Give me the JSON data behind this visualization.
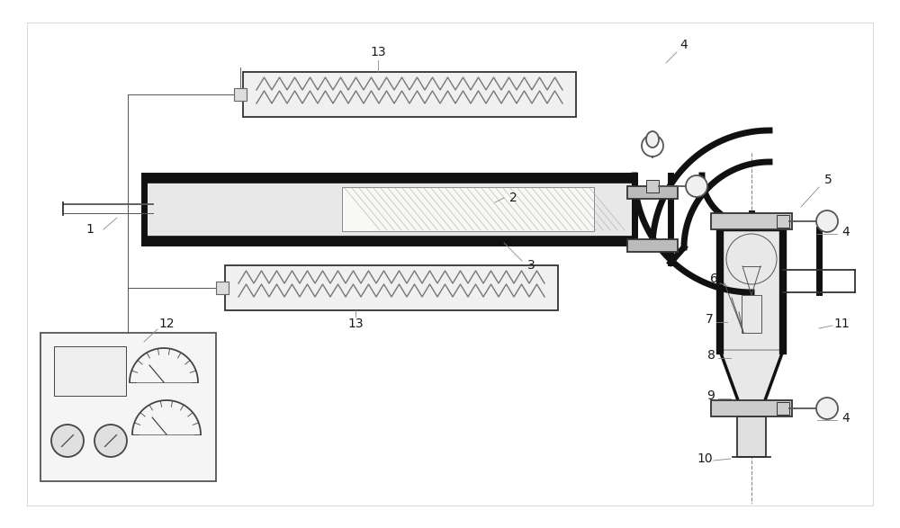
{
  "bg_color": "#ffffff",
  "lc": "#1a1a1a",
  "gray": "#888888",
  "light_gray": "#cccccc",
  "med_gray": "#555555",
  "fill_light": "#f0f0f0",
  "fill_med": "#e0e0e0",
  "fill_dark": "#111111"
}
